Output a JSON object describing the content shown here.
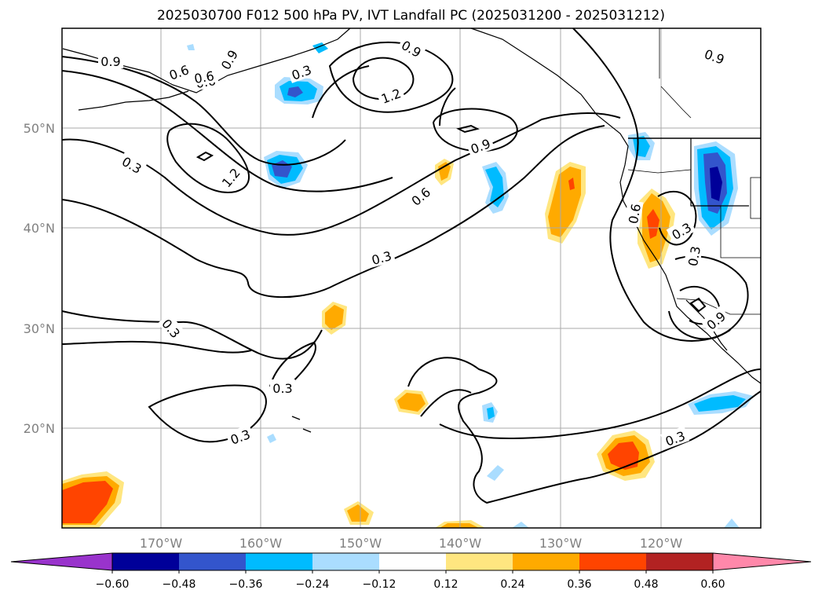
{
  "title": "2025030700 F012 500 hPa PV, IVT Landfall PC (2025031200 - 2025031212)",
  "latitude_labels": [
    "50°N",
    "40°N",
    "30°N",
    "20°N"
  ],
  "longitude_labels": [
    "170°W",
    "160°W",
    "150°W",
    "140°W",
    "130°W",
    "120°W"
  ],
  "contour_labels": [
    "0.9",
    "0.6",
    "0.6",
    "0.9",
    "0.3",
    "0.9",
    "1.2",
    "0.6",
    "0.3",
    "1.2",
    "0.3",
    "0.9",
    "0.6",
    "0.3",
    "0.3",
    "0.3",
    "0.3",
    "0.3",
    "0.9",
    "0.3",
    "0.9",
    "0.6"
  ],
  "colorbar": {
    "tick_labels": [
      "−0.60",
      "−0.48",
      "−0.36",
      "−0.24",
      "−0.12",
      "0.12",
      "0.24",
      "0.36",
      "0.48",
      "0.60"
    ],
    "colors": [
      "#9933cc",
      "#000099",
      "#3355cc",
      "#00bbff",
      "#aaddff",
      "#ffffff",
      "#ffe680",
      "#ffaa00",
      "#ff4400",
      "#b22222",
      "#ff88aa"
    ]
  }
}
